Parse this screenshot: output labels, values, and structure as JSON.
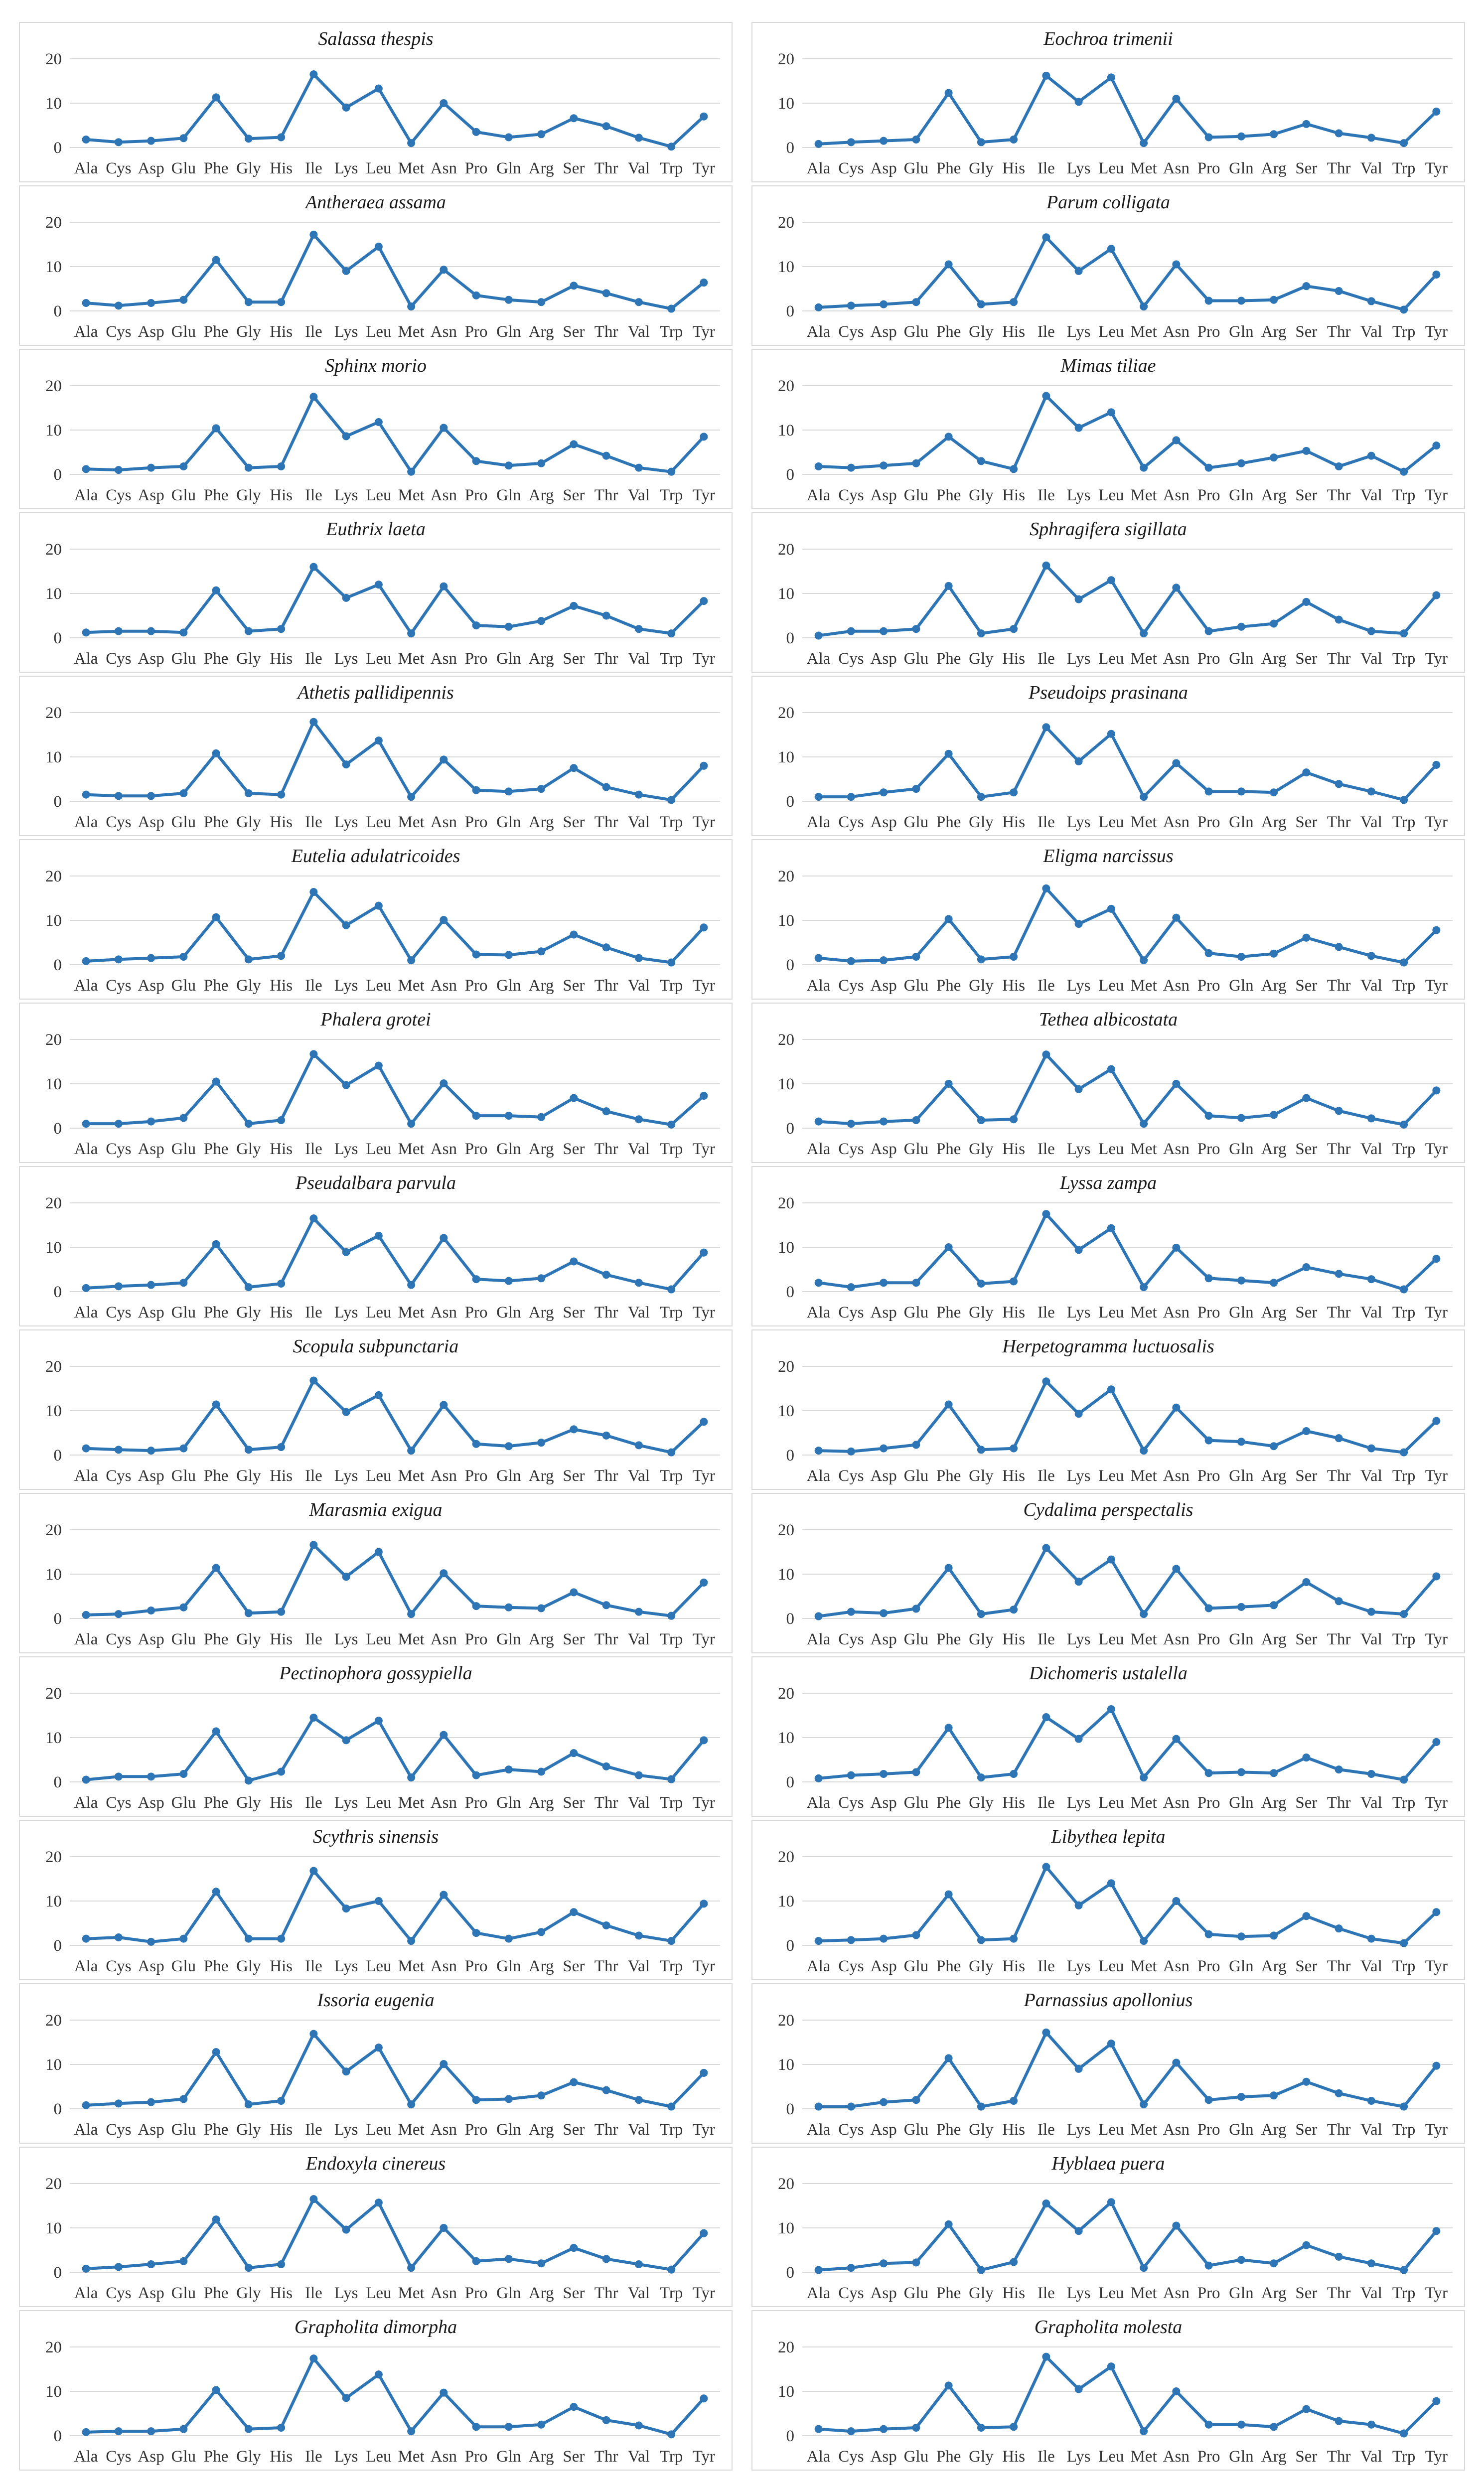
{
  "categories": [
    "Ala",
    "Cys",
    "Asp",
    "Glu",
    "Phe",
    "Gly",
    "His",
    "Ile",
    "Lys",
    "Leu",
    "Met",
    "Asn",
    "Pro",
    "Gln",
    "Arg",
    "Ser",
    "Thr",
    "Val",
    "Trp",
    "Tyr"
  ],
  "yticks": [
    "0",
    "10",
    "20"
  ],
  "line_color": "#2E75B6",
  "chart_data": [
    {
      "type": "line",
      "title": "Salassa thespis",
      "ylim": [
        0,
        20
      ],
      "values": [
        1.8,
        1.2,
        1.5,
        2.1,
        11.3,
        2.0,
        2.3,
        16.5,
        9.0,
        13.3,
        1.0,
        10.0,
        3.5,
        2.3,
        3.0,
        6.6,
        4.8,
        2.2,
        0.2,
        7.0
      ]
    },
    {
      "type": "line",
      "title": "Eochroa trimenii",
      "ylim": [
        0,
        20
      ],
      "values": [
        0.8,
        1.2,
        1.5,
        1.8,
        12.3,
        1.2,
        1.8,
        16.2,
        10.3,
        15.8,
        1.0,
        11.0,
        2.3,
        2.5,
        3.0,
        5.3,
        3.2,
        2.2,
        1.0,
        8.1
      ]
    },
    {
      "type": "line",
      "title": "Antheraea assama",
      "ylim": [
        0,
        20
      ],
      "values": [
        1.8,
        1.2,
        1.8,
        2.5,
        11.5,
        2.0,
        2.0,
        17.2,
        9.0,
        14.5,
        1.0,
        9.3,
        3.5,
        2.5,
        2.0,
        5.7,
        4.0,
        2.0,
        0.5,
        6.4
      ]
    },
    {
      "type": "line",
      "title": "Parum colligata",
      "ylim": [
        0,
        20
      ],
      "values": [
        0.8,
        1.2,
        1.5,
        2.0,
        10.5,
        1.5,
        2.0,
        16.6,
        9.0,
        14.0,
        1.0,
        10.5,
        2.3,
        2.3,
        2.5,
        5.6,
        4.5,
        2.2,
        0.3,
        8.2
      ]
    },
    {
      "type": "line",
      "title": "Sphinx morio",
      "ylim": [
        0,
        20
      ],
      "values": [
        1.2,
        1.0,
        1.5,
        1.8,
        10.4,
        1.5,
        1.8,
        17.5,
        8.6,
        11.8,
        0.6,
        10.5,
        3.0,
        2.0,
        2.5,
        6.8,
        4.2,
        1.5,
        0.6,
        8.5
      ]
    },
    {
      "type": "line",
      "title": "Mimas tiliae",
      "ylim": [
        0,
        20
      ],
      "values": [
        1.8,
        1.5,
        2.0,
        2.5,
        8.5,
        3.0,
        1.2,
        17.7,
        10.5,
        14.0,
        1.5,
        7.7,
        1.5,
        2.5,
        3.8,
        5.3,
        1.8,
        4.2,
        0.6,
        6.5
      ]
    },
    {
      "type": "line",
      "title": "Euthrix laeta",
      "ylim": [
        0,
        20
      ],
      "values": [
        1.2,
        1.5,
        1.5,
        1.2,
        10.7,
        1.5,
        2.0,
        16.0,
        9.0,
        12.0,
        1.0,
        11.6,
        2.8,
        2.5,
        3.8,
        7.2,
        5.0,
        2.0,
        1.0,
        8.3
      ]
    },
    {
      "type": "line",
      "title": "Sphragifera sigillata",
      "ylim": [
        0,
        20
      ],
      "values": [
        0.5,
        1.5,
        1.5,
        2.0,
        11.7,
        1.0,
        2.0,
        16.3,
        8.7,
        13.0,
        1.0,
        11.3,
        1.5,
        2.5,
        3.2,
        8.1,
        4.1,
        1.5,
        1.0,
        9.6
      ]
    },
    {
      "type": "line",
      "title": "Athetis pallidipennis",
      "ylim": [
        0,
        20
      ],
      "values": [
        1.5,
        1.2,
        1.2,
        1.8,
        10.8,
        1.8,
        1.5,
        17.9,
        8.3,
        13.7,
        1.0,
        9.4,
        2.5,
        2.2,
        2.8,
        7.5,
        3.2,
        1.5,
        0.3,
        8.0
      ]
    },
    {
      "type": "line",
      "title": "Pseudoips prasinana",
      "ylim": [
        0,
        20
      ],
      "values": [
        1.0,
        1.0,
        2.0,
        2.8,
        10.7,
        1.0,
        2.0,
        16.7,
        9.0,
        15.2,
        1.0,
        8.6,
        2.2,
        2.2,
        2.0,
        6.5,
        3.9,
        2.2,
        0.3,
        8.2
      ]
    },
    {
      "type": "line",
      "title": "Eutelia adulatricoides",
      "ylim": [
        0,
        20
      ],
      "values": [
        0.8,
        1.2,
        1.5,
        1.8,
        10.7,
        1.2,
        2.0,
        16.4,
        8.9,
        13.3,
        1.0,
        10.1,
        2.3,
        2.2,
        3.0,
        6.8,
        3.9,
        1.5,
        0.5,
        8.4
      ]
    },
    {
      "type": "line",
      "title": "Eligma narcissus",
      "ylim": [
        0,
        20
      ],
      "values": [
        1.5,
        0.8,
        1.0,
        1.8,
        10.3,
        1.2,
        1.8,
        17.2,
        9.2,
        12.6,
        1.0,
        10.6,
        2.6,
        1.8,
        2.5,
        6.1,
        4.0,
        2.0,
        0.5,
        7.8
      ]
    },
    {
      "type": "line",
      "title": "Phalera grotei",
      "ylim": [
        0,
        20
      ],
      "values": [
        1.0,
        1.0,
        1.5,
        2.3,
        10.5,
        1.0,
        1.8,
        16.7,
        9.7,
        14.1,
        1.0,
        10.1,
        2.8,
        2.8,
        2.5,
        6.8,
        3.8,
        2.0,
        0.8,
        7.3
      ]
    },
    {
      "type": "line",
      "title": "Tethea albicostata",
      "ylim": [
        0,
        20
      ],
      "values": [
        1.5,
        1.0,
        1.5,
        1.8,
        10.0,
        1.8,
        2.0,
        16.6,
        8.8,
        13.3,
        1.0,
        10.0,
        2.8,
        2.3,
        3.0,
        6.8,
        3.9,
        2.2,
        0.8,
        8.5
      ]
    },
    {
      "type": "line",
      "title": "Pseudalbara parvula",
      "ylim": [
        0,
        20
      ],
      "values": [
        0.8,
        1.2,
        1.5,
        2.0,
        10.7,
        1.0,
        1.8,
        16.5,
        8.9,
        12.6,
        1.5,
        12.1,
        2.8,
        2.4,
        3.0,
        6.8,
        3.8,
        2.0,
        0.5,
        8.8
      ]
    },
    {
      "type": "line",
      "title": "Lyssa zampa",
      "ylim": [
        0,
        20
      ],
      "values": [
        2.0,
        1.0,
        2.0,
        2.0,
        10.0,
        1.8,
        2.3,
        17.5,
        9.4,
        14.3,
        1.0,
        9.9,
        3.0,
        2.5,
        2.0,
        5.5,
        4.0,
        2.8,
        0.5,
        7.4
      ]
    },
    {
      "type": "line",
      "title": "Scopula subpunctaria",
      "ylim": [
        0,
        20
      ],
      "values": [
        1.5,
        1.2,
        1.0,
        1.5,
        11.4,
        1.2,
        1.8,
        16.8,
        9.7,
        13.5,
        1.0,
        11.3,
        2.5,
        2.0,
        2.8,
        5.8,
        4.4,
        2.2,
        0.6,
        7.5
      ]
    },
    {
      "type": "line",
      "title": "Herpetogramma luctuosalis",
      "ylim": [
        0,
        20
      ],
      "values": [
        1.0,
        0.8,
        1.5,
        2.3,
        11.4,
        1.2,
        1.5,
        16.6,
        9.3,
        14.8,
        1.0,
        10.7,
        3.3,
        3.0,
        2.0,
        5.4,
        3.8,
        1.5,
        0.6,
        7.7
      ]
    },
    {
      "type": "line",
      "title": "Marasmia exigua",
      "ylim": [
        0,
        20
      ],
      "values": [
        0.8,
        1.0,
        1.8,
        2.5,
        11.4,
        1.2,
        1.5,
        16.6,
        9.4,
        15.0,
        1.0,
        10.2,
        2.8,
        2.5,
        2.3,
        5.9,
        3.0,
        1.5,
        0.6,
        8.1
      ]
    },
    {
      "type": "line",
      "title": "Cydalima perspectalis",
      "ylim": [
        0,
        20
      ],
      "values": [
        0.5,
        1.5,
        1.2,
        2.2,
        11.4,
        1.0,
        2.0,
        15.9,
        8.3,
        13.3,
        1.0,
        11.2,
        2.3,
        2.6,
        3.0,
        8.2,
        3.9,
        1.5,
        1.0,
        9.5
      ]
    },
    {
      "type": "line",
      "title": "Pectinophora gossypiella",
      "ylim": [
        0,
        20
      ],
      "values": [
        0.5,
        1.2,
        1.2,
        1.8,
        11.4,
        0.3,
        2.3,
        14.5,
        9.4,
        13.8,
        1.0,
        10.6,
        1.5,
        2.8,
        2.3,
        6.5,
        3.5,
        1.5,
        0.6,
        9.4
      ]
    },
    {
      "type": "line",
      "title": "Dichomeris ustalella",
      "ylim": [
        0,
        20
      ],
      "values": [
        0.8,
        1.5,
        1.8,
        2.2,
        12.2,
        1.0,
        1.8,
        14.6,
        9.7,
        16.4,
        1.0,
        9.7,
        2.0,
        2.2,
        2.0,
        5.5,
        2.8,
        1.8,
        0.5,
        9.0
      ]
    },
    {
      "type": "line",
      "title": "Scythris sinensis",
      "ylim": [
        0,
        20
      ],
      "values": [
        1.5,
        1.8,
        0.8,
        1.5,
        12.1,
        1.5,
        1.5,
        16.8,
        8.3,
        10.0,
        1.0,
        11.4,
        2.8,
        1.5,
        3.0,
        7.5,
        4.5,
        2.2,
        1.0,
        9.4
      ]
    },
    {
      "type": "line",
      "title": "Libythea lepita",
      "ylim": [
        0,
        20
      ],
      "values": [
        1.0,
        1.2,
        1.5,
        2.3,
        11.5,
        1.2,
        1.5,
        17.7,
        9.0,
        14.0,
        1.0,
        10.0,
        2.5,
        2.0,
        2.2,
        6.6,
        3.8,
        1.5,
        0.5,
        7.5
      ]
    },
    {
      "type": "line",
      "title": "Issoria eugenia",
      "ylim": [
        0,
        20
      ],
      "values": [
        0.8,
        1.2,
        1.5,
        2.2,
        12.8,
        1.0,
        1.8,
        16.9,
        8.4,
        13.8,
        1.0,
        10.1,
        2.0,
        2.2,
        3.0,
        6.0,
        4.2,
        2.0,
        0.5,
        8.1
      ]
    },
    {
      "type": "line",
      "title": "Parnassius apollonius",
      "ylim": [
        0,
        20
      ],
      "values": [
        0.5,
        0.5,
        1.5,
        2.0,
        11.4,
        0.5,
        1.8,
        17.2,
        9.0,
        14.7,
        1.0,
        10.4,
        2.0,
        2.7,
        3.0,
        6.1,
        3.5,
        1.8,
        0.5,
        9.7
      ]
    },
    {
      "type": "line",
      "title": "Endoxyla cinereus",
      "ylim": [
        0,
        20
      ],
      "values": [
        0.8,
        1.2,
        1.8,
        2.5,
        11.9,
        1.0,
        1.8,
        16.5,
        9.6,
        15.7,
        1.0,
        10.0,
        2.5,
        3.0,
        2.0,
        5.5,
        3.0,
        1.8,
        0.6,
        8.8
      ]
    },
    {
      "type": "line",
      "title": "Hyblaea puera",
      "ylim": [
        0,
        20
      ],
      "values": [
        0.5,
        1.0,
        2.0,
        2.2,
        10.8,
        0.5,
        2.3,
        15.5,
        9.3,
        15.8,
        1.0,
        10.5,
        1.5,
        2.8,
        2.0,
        6.1,
        3.5,
        2.0,
        0.5,
        9.3
      ]
    },
    {
      "type": "line",
      "title": "Grapholita dimorpha",
      "ylim": [
        0,
        20
      ],
      "values": [
        0.8,
        1.0,
        1.0,
        1.5,
        10.3,
        1.5,
        1.8,
        17.4,
        8.5,
        13.8,
        1.0,
        9.7,
        2.0,
        2.0,
        2.5,
        6.5,
        3.5,
        2.3,
        0.3,
        8.4
      ]
    },
    {
      "type": "line",
      "title": "Grapholita molesta",
      "ylim": [
        0,
        20
      ],
      "values": [
        1.5,
        1.0,
        1.5,
        1.8,
        11.3,
        1.8,
        2.0,
        17.8,
        10.5,
        15.6,
        1.0,
        10.0,
        2.5,
        2.5,
        2.0,
        6.0,
        3.3,
        2.5,
        0.5,
        7.8
      ]
    }
  ]
}
